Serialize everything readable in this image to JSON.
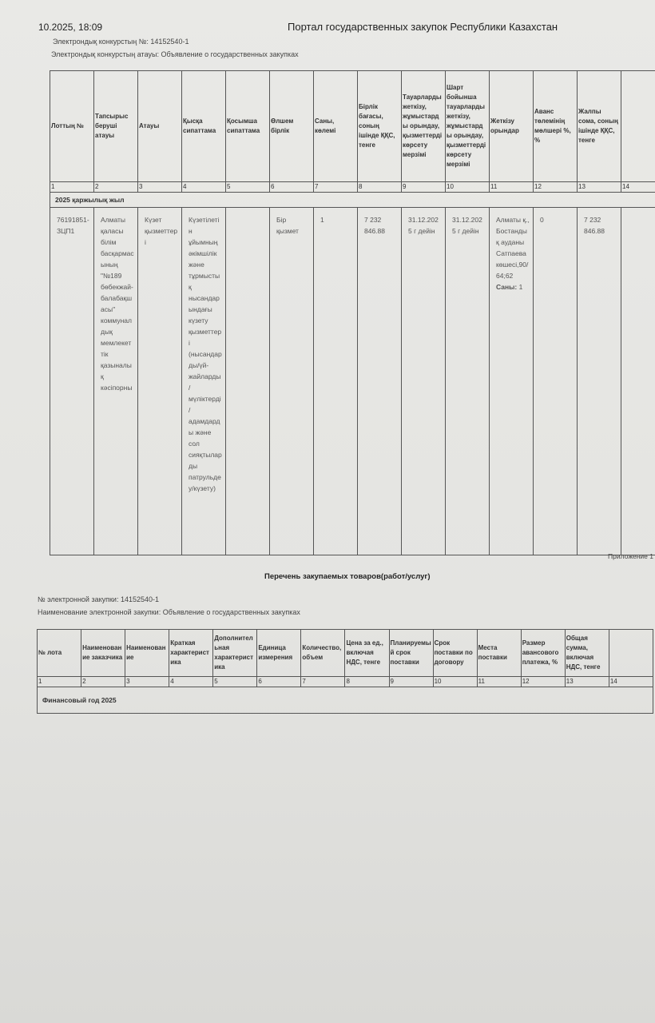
{
  "header": {
    "datetime": "10.2025, 18:09",
    "portal_title": "Портал государственных закупок Республики Казахстан"
  },
  "kz_section": {
    "competition_number": "Электрондық конкурстың №: 14152540-1",
    "competition_name": "Электрондық конкурстың атауы: Объявление о государственных закупках",
    "columns": [
      "Лоттың №",
      "Тапсырыс беруші атауы",
      "Атауы",
      "Қысқа сипаттама",
      "Қосымша сипаттама",
      "Өлшем бірлік",
      "Саны, көлемі",
      "Бірлік бағасы, соның ішінде ҚҚС, тенге",
      "Тауарларды жеткізу, жұмыстарды орындау, қызметтерді көрсету мерзімі",
      "Шарт бойынша тауарларды жеткізу, жұмыстарды орындау, қызметтерді көрсету мерзімі",
      "Жеткізу орындар",
      "Аванс төлемінің мөлшері %, %",
      "Жалпы сома, соның ішінде ҚҚС, тенге",
      ""
    ],
    "column_numbers": [
      "1",
      "2",
      "3",
      "4",
      "5",
      "6",
      "7",
      "8",
      "9",
      "10",
      "11",
      "12",
      "13",
      "14"
    ],
    "year_row": "2025 қаржылық жыл",
    "rows": [
      [
        "76191851-ЗЦП1",
        "Алматы қаласы білім басқармасының \"№189 бөбекжай-балабақшасы\" коммуналдық мемлекеттік қазыналық кәсіпорны",
        "Күзет қызметтері",
        "Күзетілетін ұйымның әкімшілік және тұрмыстық нысандарындағы күзету қызметтері (нысандарды/үй-жайларды/мүліктерді/адамдарды және сол сияқтыларды патрульдеу/күзету)",
        "",
        "Бір қызмет",
        "1",
        "7 232 846.88",
        "31.12.2025 г дейін",
        "31.12.2025 г дейін",
        "Алматы қ., Бостандық ауданы Сатпаева көшесі,90/64;62",
        "0",
        "7 232 846.88",
        ""
      ]
    ],
    "delivery_qty_label": "Саны:",
    "delivery_qty_value": "1"
  },
  "ru_section": {
    "appendix": "Приложение 1",
    "title": "Перечень закупаемых товаров(работ/услуг)",
    "purchase_number": "№ электронной закупки: 14152540-1",
    "purchase_name": "Наименование электронной закупки: Объявление о государственных закупках",
    "columns": [
      "№ лота",
      "Наименование заказчика",
      "Наименование",
      "Краткая характеристика",
      "Дополнительная характеристика",
      "Единица измерения",
      "Количество, объем",
      "Цена за ед., включая НДС, тенге",
      "Планируемый срок поставки",
      "Срок поставки по договору",
      "Места поставки",
      "Размер авансового платежа, %",
      "Общая сумма, включая НДС, тенге",
      ""
    ],
    "column_numbers": [
      "1",
      "2",
      "3",
      "4",
      "5",
      "6",
      "7",
      "8",
      "9",
      "10",
      "11",
      "12",
      "13",
      "14"
    ],
    "year_row": "Финансовый год 2025"
  }
}
